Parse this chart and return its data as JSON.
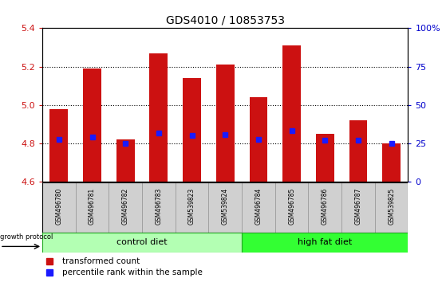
{
  "title": "GDS4010 / 10853753",
  "samples": [
    "GSM496780",
    "GSM496781",
    "GSM496782",
    "GSM496783",
    "GSM539823",
    "GSM539824",
    "GSM496784",
    "GSM496785",
    "GSM496786",
    "GSM496787",
    "GSM539825"
  ],
  "transformed_counts": [
    4.98,
    5.19,
    4.82,
    5.27,
    5.14,
    5.21,
    5.04,
    5.31,
    4.85,
    4.92,
    4.8
  ],
  "percentile_ranks": [
    4.82,
    4.835,
    4.8,
    4.855,
    4.84,
    4.845,
    4.82,
    4.865,
    4.815,
    4.815,
    4.8
  ],
  "ylim": [
    4.6,
    5.4
  ],
  "yticks_left": [
    4.6,
    4.8,
    5.0,
    5.2,
    5.4
  ],
  "yticks_right": [
    0,
    25,
    50,
    75,
    100
  ],
  "bar_color": "#cc1111",
  "percentile_color": "#1a1aff",
  "bar_width": 0.55,
  "control_diet_indices": [
    0,
    1,
    2,
    3,
    4,
    5
  ],
  "high_fat_indices": [
    6,
    7,
    8,
    9,
    10
  ],
  "control_label": "control diet",
  "high_fat_label": "high fat diet",
  "control_color": "#b3ffb3",
  "high_fat_color": "#33ff33",
  "growth_protocol_label": "growth protocol",
  "legend_tc": "transformed count",
  "legend_pr": "percentile rank within the sample",
  "dotted_line_values": [
    4.8,
    5.0,
    5.2
  ],
  "base_value": 4.6,
  "axis_label_color_left": "#cc1111",
  "axis_label_color_right": "#0000cc",
  "bg_color": "#ffffff"
}
